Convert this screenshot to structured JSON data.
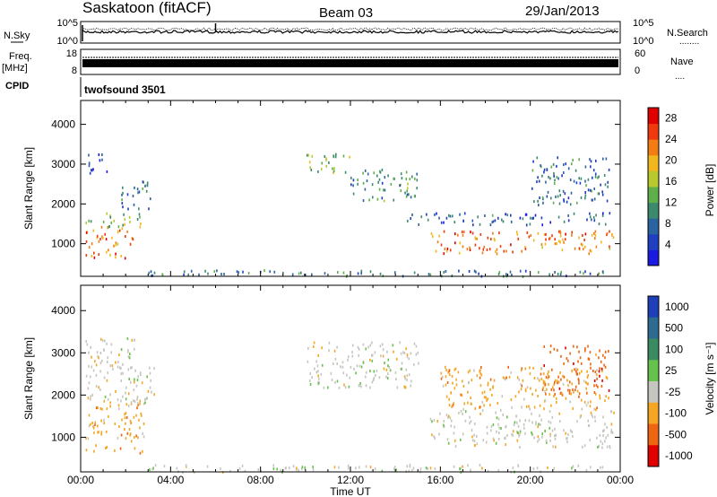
{
  "header": {
    "station": "Saskatoon (fitACF)",
    "beam": "Beam 03",
    "date": "29/Jan/2013"
  },
  "side_labels": {
    "nsky": "N.Sky",
    "freq_top": "Freq.",
    "freq_unit": "[MHz]",
    "cpid": "CPID",
    "nsearch": "N.Search",
    "nave": "Nave",
    "nsearch_dots": "........",
    "nave_dots": "...."
  },
  "cpid_name": "twofsound 3501",
  "chart_data": [
    {
      "type": "line",
      "title": "",
      "left_ticks": [
        "10^5",
        "10^0"
      ],
      "right_ticks": [
        "10^5",
        "10^0"
      ],
      "description_series": [
        "N.Sky",
        "N.Search"
      ],
      "xlim": [
        0,
        24
      ]
    },
    {
      "type": "scatter",
      "left_ticks": [
        "18",
        "8"
      ],
      "right_ticks": [
        "60",
        "0"
      ],
      "ylim_left": [
        8,
        18
      ],
      "ylim_right": [
        0,
        60
      ],
      "series": [
        {
          "name": "Freq.",
          "values": []
        },
        {
          "name": "Nave",
          "values": []
        }
      ],
      "xlim": [
        0,
        24
      ]
    },
    {
      "type": "heatmap",
      "ylabel": "Slant Range [km]",
      "yticks": [
        "4000",
        "3000",
        "2000",
        "1000"
      ],
      "ytick_values": [
        4000,
        3000,
        2000,
        1000
      ],
      "ylim": [
        180,
        4600
      ],
      "xlim": [
        0,
        24
      ],
      "colorbar": {
        "label": "Power [dB]",
        "ticks": [
          "28",
          "24",
          "20",
          "16",
          "12",
          "8",
          "4"
        ],
        "tick_values": [
          28,
          24,
          20,
          16,
          12,
          8,
          4
        ],
        "range": [
          0,
          30
        ],
        "colors": [
          "#1a1ae0",
          "#1f3ec0",
          "#2b62a0",
          "#3c8a6e",
          "#5fb04a",
          "#b9c82f",
          "#f0b81e",
          "#f37d14",
          "#ee3a0c",
          "#e00000"
        ]
      },
      "regions": [
        {
          "t0": 0.2,
          "t1": 2.3,
          "r0": 650,
          "r1": 1450,
          "level": 24
        },
        {
          "t0": 0.2,
          "t1": 2.8,
          "r0": 1450,
          "r1": 1800,
          "level": 14
        },
        {
          "t0": 0.2,
          "t1": 1.2,
          "r0": 2800,
          "r1": 3300,
          "level": 6
        },
        {
          "t0": 1.8,
          "t1": 3.2,
          "r0": 1900,
          "r1": 2600,
          "level": 8
        },
        {
          "t0": 10.0,
          "t1": 12.0,
          "r0": 2800,
          "r1": 3300,
          "level": 14
        },
        {
          "t0": 12.0,
          "t1": 15.0,
          "r0": 2100,
          "r1": 2900,
          "level": 10
        },
        {
          "t0": 14.5,
          "t1": 23.5,
          "r0": 1500,
          "r1": 1800,
          "level": 6
        },
        {
          "t0": 15.5,
          "t1": 23.7,
          "r0": 780,
          "r1": 1350,
          "level": 24
        },
        {
          "t0": 3.0,
          "t1": 23.5,
          "r0": 200,
          "r1": 360,
          "level": 8
        },
        {
          "t0": 20.0,
          "t1": 23.5,
          "r0": 2000,
          "r1": 3200,
          "level": 8
        }
      ]
    },
    {
      "type": "heatmap",
      "ylabel": "Slant Range [km]",
      "xlabel": "Time UT",
      "xticks": [
        "00:00",
        "04:00",
        "08:00",
        "12:00",
        "16:00",
        "20:00",
        "00:00"
      ],
      "xtick_values": [
        0,
        4,
        8,
        12,
        16,
        20,
        24
      ],
      "yticks": [
        "4000",
        "3000",
        "2000",
        "1000"
      ],
      "ytick_values": [
        4000,
        3000,
        2000,
        1000
      ],
      "ylim": [
        180,
        4600
      ],
      "xlim": [
        0,
        24
      ],
      "colorbar": {
        "label": "Velocity [m s⁻¹]",
        "ticks": [
          "1000",
          "500",
          "100",
          "25",
          "-25",
          "-100",
          "-500",
          "-1000"
        ],
        "colors": [
          "#1f3fb8",
          "#2f6a90",
          "#3a8a62",
          "#67c14d",
          "#c6c6c0",
          "#f5a623",
          "#ee6611",
          "#e00000"
        ]
      },
      "regions": [
        {
          "t0": 0.2,
          "t1": 2.8,
          "r0": 650,
          "r1": 1900,
          "cls": 5
        },
        {
          "t0": 0.2,
          "t1": 2.5,
          "r0": 1900,
          "r1": 3400,
          "cls": 4
        },
        {
          "t0": 2.2,
          "t1": 3.3,
          "r0": 1800,
          "r1": 2700,
          "cls": 4
        },
        {
          "t0": 10.0,
          "t1": 15.0,
          "r0": 2200,
          "r1": 3300,
          "cls": 4
        },
        {
          "t0": 15.5,
          "t1": 23.7,
          "r0": 780,
          "r1": 1700,
          "cls": 4
        },
        {
          "t0": 16.0,
          "t1": 23.5,
          "r0": 1700,
          "r1": 2700,
          "cls": 5
        },
        {
          "t0": 3.0,
          "t1": 23.5,
          "r0": 200,
          "r1": 380,
          "cls": 4
        },
        {
          "t0": 20.5,
          "t1": 23.5,
          "r0": 2000,
          "r1": 3200,
          "cls": 6
        }
      ]
    }
  ]
}
